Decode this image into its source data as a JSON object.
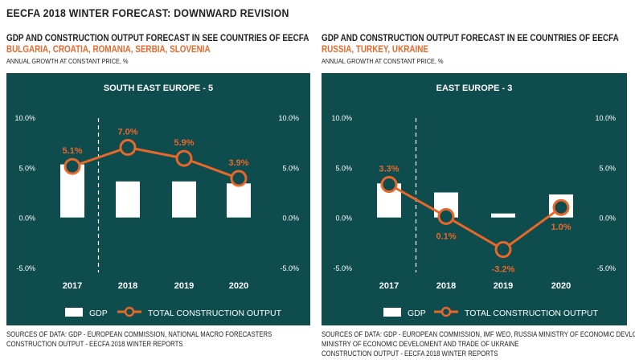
{
  "page_title": "EECFA 2018 WINTER FORECAST: DOWNWARD REVISION",
  "colors": {
    "panel_bg": "#0f4c4d",
    "accent": "#e8682a",
    "bar": "#ffffff",
    "text_light": "#ffffff"
  },
  "panels": [
    {
      "heading": "GDP AND CONSTRUCTION OUTPUT FORECAST IN SEE COUNTRIES OF EECFA",
      "countries": "BULGARIA, CROATIA, ROMANIA, SERBIA, SLOVENIA",
      "note": "ANNUAL GROWTH AT CONSTANT PRICE, %",
      "sources": [
        "SOURCES OF DATA: GDP - EUROPEAN COMMISSION, NATIONAL MACRO FORECASTERS",
        "CONSTRUCTION OUTPUT - EECFA 2018 WINTER REPORTS"
      ]
    },
    {
      "heading": "GDP AND CONSTRUCTION OUTPUT FORECAST IN EE COUNTRIES OF EECFA",
      "countries": "RUSSIA, TURKEY, UKRAINE",
      "note": "ANNUAL GROWTH AT CONSTANT PRICE, %",
      "sources": [
        "SOURCES OF DATA: GDP - EUROPEAN COMMISSION, IMF WEO, RUSSIA MINISTRY OF ECONOMIC DEVLOPMENT,",
        "MINISTRY OF ECONOMIC DEVELOMENT AND TRADE OF UKRAINE",
        "CONSTRUCTION OUTPUT - EECFA 2018 WINTER REPORTS"
      ]
    }
  ],
  "chart_data": [
    {
      "type": "bar",
      "title": "SOUTH EAST EUROPE - 5",
      "categories": [
        "2017",
        "2018",
        "2019",
        "2020"
      ],
      "series": [
        {
          "name": "GDP",
          "type": "bar",
          "values": [
            5.3,
            3.6,
            3.6,
            3.4
          ]
        },
        {
          "name": "TOTAL CONSTRUCTION OUTPUT",
          "type": "line",
          "values": [
            5.1,
            7.0,
            5.9,
            3.9
          ],
          "labels": [
            "5.1%",
            "7.0%",
            "5.9%",
            "3.9%"
          ]
        }
      ],
      "ylim": [
        -5,
        10
      ],
      "yticks": [
        "10.0%",
        "5.0%",
        "0.0%",
        "-5.0%"
      ],
      "ytick_values": [
        10,
        5,
        0,
        -5
      ],
      "separator_after_category": "2017",
      "legend_position": "bottom"
    },
    {
      "type": "bar",
      "title": "EAST EUROPE - 3",
      "categories": [
        "2017",
        "2018",
        "2019",
        "2020"
      ],
      "series": [
        {
          "name": "GDP",
          "type": "bar",
          "values": [
            3.4,
            2.5,
            0.4,
            2.3
          ]
        },
        {
          "name": "TOTAL CONSTRUCTION OUTPUT",
          "type": "line",
          "values": [
            3.3,
            0.1,
            -3.2,
            1.0
          ],
          "labels": [
            "3.3%",
            "0.1%",
            "-3.2%",
            "1.0%"
          ]
        }
      ],
      "ylim": [
        -5,
        10
      ],
      "yticks": [
        "10.0%",
        "5.0%",
        "0.0%",
        "-5.0%"
      ],
      "ytick_values": [
        10,
        5,
        0,
        -5
      ],
      "separator_after_category": "2017",
      "legend_position": "bottom"
    }
  ]
}
